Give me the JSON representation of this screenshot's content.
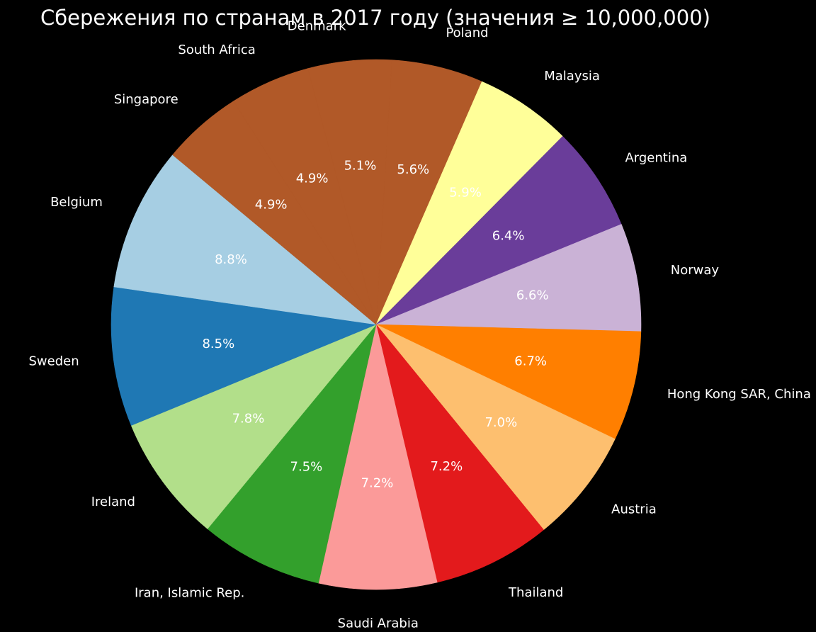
{
  "chart_data": {
    "type": "pie",
    "title": "Сбережения по странам в 2017 году (значения ≥ 10,000,000)",
    "slices": [
      {
        "label": "Poland",
        "percent": 5.6,
        "display": "5.6%",
        "color": "#b15928"
      },
      {
        "label": "Malaysia",
        "percent": 5.9,
        "display": "5.9%",
        "color": "#ffff99"
      },
      {
        "label": "Argentina",
        "percent": 6.4,
        "display": "6.4%",
        "color": "#6a3d9a"
      },
      {
        "label": "Norway",
        "percent": 6.6,
        "display": "6.6%",
        "color": "#cab2d6"
      },
      {
        "label": "Hong Kong SAR, China",
        "percent": 6.7,
        "display": "6.7%",
        "color": "#ff7f00"
      },
      {
        "label": "Austria",
        "percent": 7.0,
        "display": "7.0%",
        "color": "#fdbf6f"
      },
      {
        "label": "Thailand",
        "percent": 7.2,
        "display": "7.2%",
        "color": "#e31a1c"
      },
      {
        "label": "Saudi Arabia",
        "percent": 7.2,
        "display": "7.2%",
        "color": "#fb9a99"
      },
      {
        "label": "Iran, Islamic Rep.",
        "percent": 7.5,
        "display": "7.5%",
        "color": "#33a02c"
      },
      {
        "label": "Ireland",
        "percent": 7.8,
        "display": "7.8%",
        "color": "#b2df8a"
      },
      {
        "label": "Sweden",
        "percent": 8.5,
        "display": "8.5%",
        "color": "#1f78b4"
      },
      {
        "label": "Belgium",
        "percent": 8.8,
        "display": "8.8%",
        "color": "#a6cee3"
      },
      {
        "label": "Singapore",
        "percent": 4.9,
        "display": "4.9%",
        "color": "#b15928"
      },
      {
        "label": "South Africa",
        "percent": 4.9,
        "display": "4.9%",
        "color": "#b15928"
      },
      {
        "label": "Denmark",
        "percent": 5.1,
        "display": "5.1%",
        "color": "#b15928"
      }
    ],
    "direction": "clockwise"
  }
}
